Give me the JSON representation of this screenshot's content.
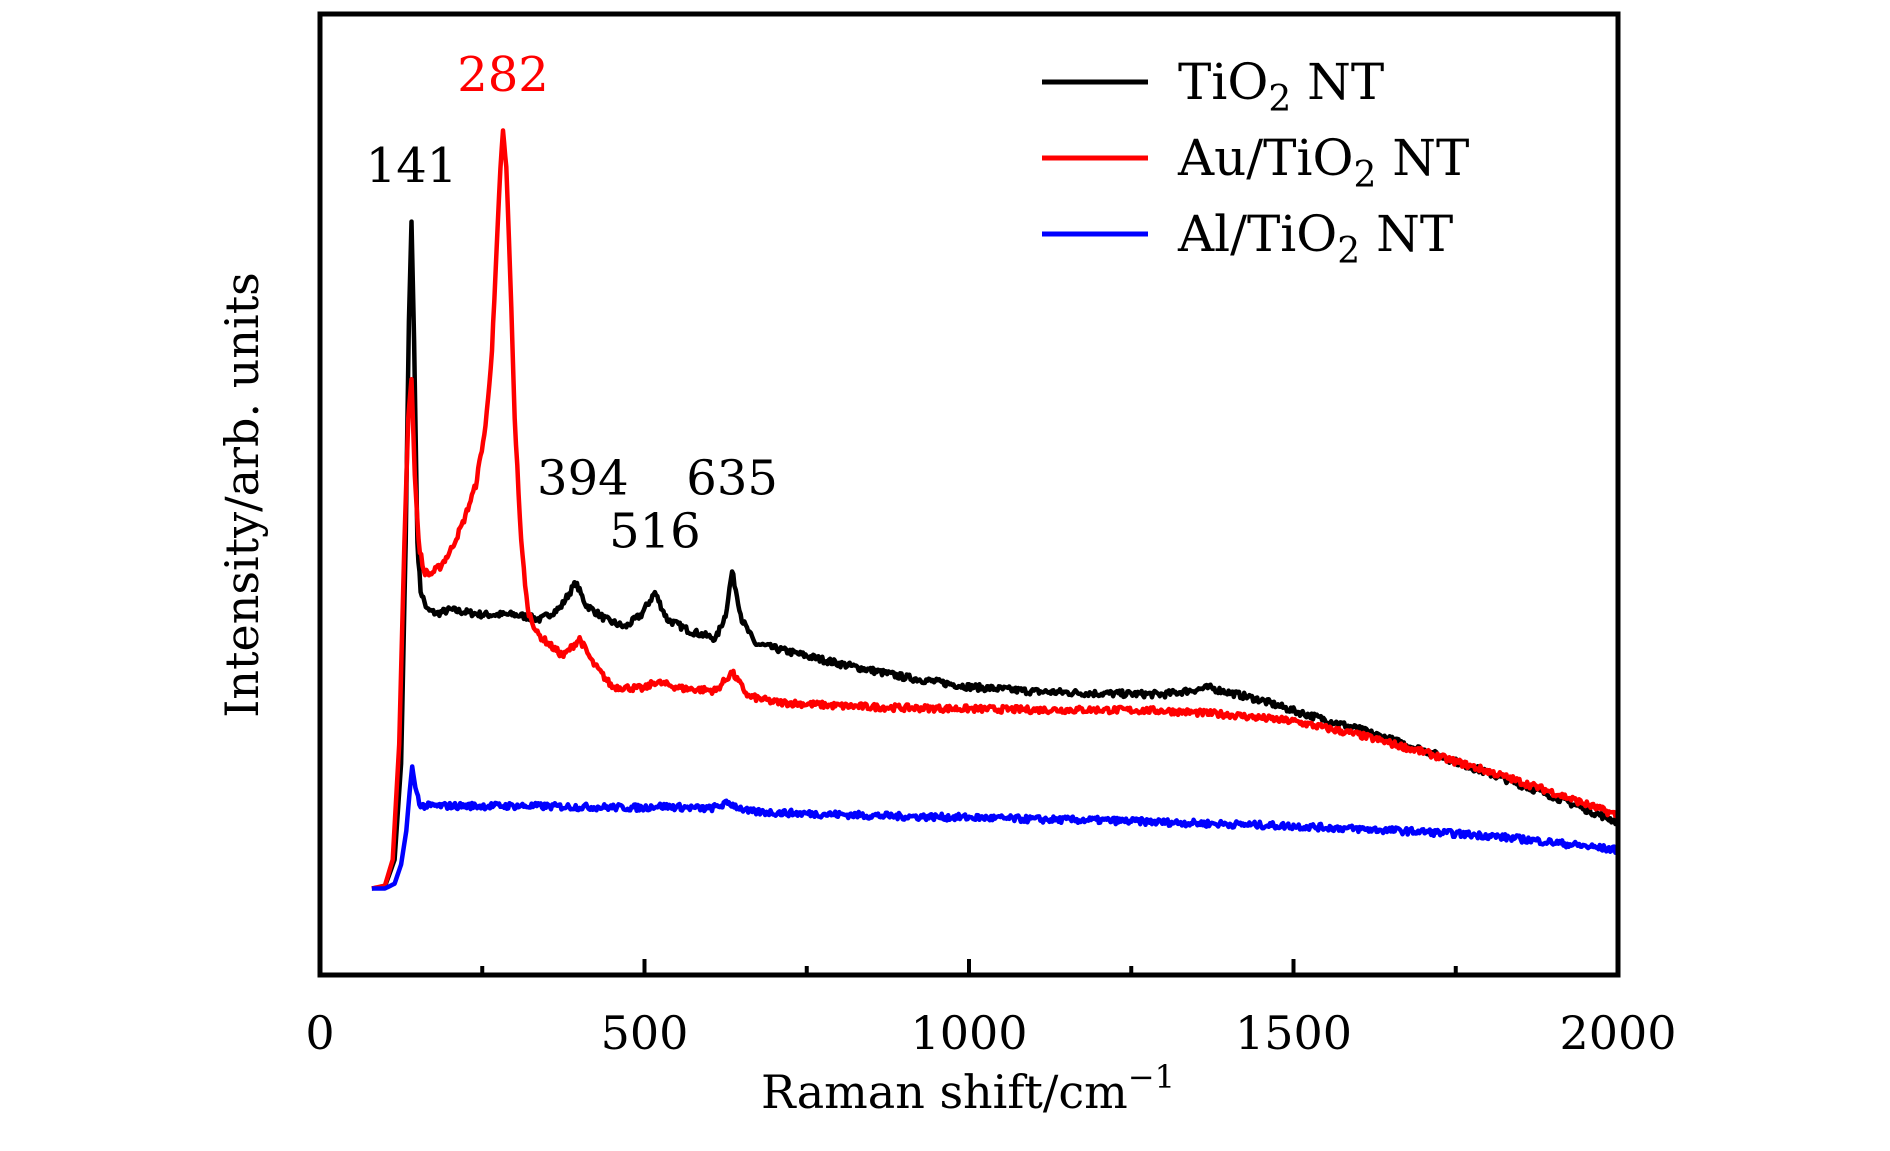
{
  "chart_data": {
    "type": "line",
    "title": "",
    "xlabel": "Raman shift/cm",
    "xlabel_superscript": "−1",
    "ylabel": "Intensity/arb. units",
    "xlim": [
      0,
      2000
    ],
    "ylim": [
      0,
      100
    ],
    "x_ticks": [
      0,
      500,
      1000,
      1500,
      2000
    ],
    "x_tick_labels": [
      "0",
      "500",
      "1000",
      "1500",
      "2000"
    ],
    "x_minor_ticks": [
      250,
      750,
      1250,
      1750
    ],
    "y_ticks_shown": false,
    "grid": false,
    "legend_position": "top-right",
    "series": [
      {
        "name": "TiO2 NT",
        "label_main": "TiO",
        "label_sub": "2",
        "label_tail": " NT",
        "color": "#000000",
        "points": [
          [
            80,
            9.0
          ],
          [
            100,
            9.2
          ],
          [
            115,
            12.0
          ],
          [
            125,
            22.0
          ],
          [
            132,
            45.0
          ],
          [
            137,
            68.0
          ],
          [
            141,
            78.4
          ],
          [
            145,
            66.0
          ],
          [
            150,
            45.0
          ],
          [
            155,
            40.0
          ],
          [
            165,
            38.0
          ],
          [
            180,
            37.6
          ],
          [
            200,
            38.0
          ],
          [
            250,
            37.5
          ],
          [
            300,
            37.5
          ],
          [
            340,
            37.0
          ],
          [
            370,
            38.2
          ],
          [
            394,
            40.8
          ],
          [
            410,
            38.5
          ],
          [
            440,
            37.0
          ],
          [
            470,
            36.2
          ],
          [
            495,
            37.5
          ],
          [
            516,
            39.8
          ],
          [
            535,
            37.0
          ],
          [
            570,
            35.8
          ],
          [
            610,
            35.0
          ],
          [
            625,
            37.5
          ],
          [
            635,
            42.0
          ],
          [
            650,
            37.0
          ],
          [
            670,
            34.5
          ],
          [
            700,
            34.0
          ],
          [
            800,
            32.4
          ],
          [
            900,
            31.0
          ],
          [
            1000,
            30.0
          ],
          [
            1100,
            29.5
          ],
          [
            1200,
            29.3
          ],
          [
            1300,
            29.2
          ],
          [
            1370,
            29.9
          ],
          [
            1450,
            28.6
          ],
          [
            1500,
            27.5
          ],
          [
            1600,
            25.6
          ],
          [
            1700,
            23.4
          ],
          [
            1800,
            21.0
          ],
          [
            1900,
            18.6
          ],
          [
            2000,
            15.9
          ]
        ]
      },
      {
        "name": "Au/TiO2 NT",
        "label_main": "Au/TiO",
        "label_sub": "2",
        "label_tail": " NT",
        "color": "#ff0000",
        "points": [
          [
            80,
            9.0
          ],
          [
            100,
            9.3
          ],
          [
            112,
            12.0
          ],
          [
            122,
            24.0
          ],
          [
            130,
            45.0
          ],
          [
            136,
            58.0
          ],
          [
            141,
            62.0
          ],
          [
            146,
            52.0
          ],
          [
            152,
            45.0
          ],
          [
            160,
            42.0
          ],
          [
            170,
            41.7
          ],
          [
            185,
            42.5
          ],
          [
            200,
            44.0
          ],
          [
            220,
            47.0
          ],
          [
            240,
            51.0
          ],
          [
            255,
            57.0
          ],
          [
            265,
            65.0
          ],
          [
            272,
            75.0
          ],
          [
            278,
            84.0
          ],
          [
            282,
            87.7
          ],
          [
            287,
            84.0
          ],
          [
            293,
            73.0
          ],
          [
            300,
            58.0
          ],
          [
            310,
            45.0
          ],
          [
            320,
            38.0
          ],
          [
            335,
            35.5
          ],
          [
            360,
            34.0
          ],
          [
            375,
            33.2
          ],
          [
            400,
            35.0
          ],
          [
            420,
            32.5
          ],
          [
            450,
            30.0
          ],
          [
            500,
            29.8
          ],
          [
            516,
            30.5
          ],
          [
            560,
            29.8
          ],
          [
            610,
            29.6
          ],
          [
            635,
            31.5
          ],
          [
            660,
            29.0
          ],
          [
            700,
            28.4
          ],
          [
            800,
            28.0
          ],
          [
            900,
            27.8
          ],
          [
            1000,
            27.7
          ],
          [
            1100,
            27.6
          ],
          [
            1200,
            27.6
          ],
          [
            1300,
            27.5
          ],
          [
            1400,
            27.1
          ],
          [
            1500,
            26.4
          ],
          [
            1600,
            25.0
          ],
          [
            1700,
            23.2
          ],
          [
            1800,
            21.2
          ],
          [
            1900,
            19.0
          ],
          [
            2000,
            16.6
          ]
        ]
      },
      {
        "name": "Al/TiO2 NT",
        "label_main": "Al/TiO",
        "label_sub": "2",
        "label_tail": " NT",
        "color": "#0000ff",
        "points": [
          [
            80,
            9.0
          ],
          [
            100,
            9.0
          ],
          [
            115,
            9.5
          ],
          [
            125,
            11.5
          ],
          [
            133,
            15.0
          ],
          [
            138,
            19.0
          ],
          [
            142,
            21.7
          ],
          [
            147,
            19.5
          ],
          [
            155,
            17.6
          ],
          [
            200,
            17.6
          ],
          [
            300,
            17.6
          ],
          [
            400,
            17.5
          ],
          [
            500,
            17.4
          ],
          [
            516,
            17.6
          ],
          [
            600,
            17.3
          ],
          [
            630,
            17.9
          ],
          [
            660,
            17.0
          ],
          [
            700,
            16.9
          ],
          [
            800,
            16.7
          ],
          [
            900,
            16.5
          ],
          [
            1000,
            16.4
          ],
          [
            1100,
            16.2
          ],
          [
            1200,
            16.1
          ],
          [
            1300,
            15.9
          ],
          [
            1400,
            15.7
          ],
          [
            1500,
            15.5
          ],
          [
            1600,
            15.2
          ],
          [
            1700,
            14.9
          ],
          [
            1800,
            14.5
          ],
          [
            1900,
            13.8
          ],
          [
            2000,
            13.0
          ]
        ]
      }
    ],
    "annotations": [
      {
        "text": "141",
        "x": 141,
        "y": 82.5,
        "color": "#000000"
      },
      {
        "text": "282",
        "x": 282,
        "y": 92.0,
        "color": "#ff0000"
      },
      {
        "text": "394",
        "x": 405,
        "y": 50.0,
        "color": "#000000"
      },
      {
        "text": "516",
        "x": 516,
        "y": 44.5,
        "color": "#000000"
      },
      {
        "text": "635",
        "x": 635,
        "y": 50.0,
        "color": "#000000"
      }
    ]
  }
}
